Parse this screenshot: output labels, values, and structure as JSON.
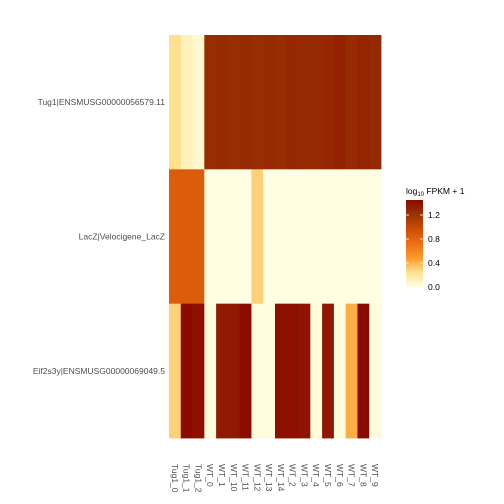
{
  "chart_data": {
    "type": "heatmap",
    "rows": [
      "Tug1|ENSMUSG00000056579.11",
      "LacZ|Velocigene_LacZ",
      "Eif2s3y|ENSMUSG00000069049.5"
    ],
    "columns": [
      "Tug1_0",
      "Tug1_1",
      "Tug1_2",
      "WT_0",
      "WT_1",
      "WT_10",
      "WT_11",
      "WT_12",
      "WT_13",
      "WT_14",
      "WT_2",
      "WT_3",
      "WT_4",
      "WT_5",
      "WT_6",
      "WT_7",
      "WT_8",
      "WT_9"
    ],
    "values": [
      [
        0.25,
        0.12,
        0.06,
        1.25,
        1.26,
        1.25,
        1.26,
        1.25,
        1.26,
        1.25,
        1.28,
        1.27,
        1.26,
        1.28,
        1.32,
        1.26,
        1.3,
        1.27
      ],
      [
        0.85,
        0.85,
        0.85,
        0.01,
        0.01,
        0.01,
        0.01,
        0.3,
        0.01,
        0.01,
        0.01,
        0.01,
        0.01,
        0.01,
        0.01,
        0.01,
        0.01,
        0.01
      ],
      [
        0.3,
        1.45,
        1.42,
        0.03,
        1.35,
        1.36,
        1.43,
        0.03,
        0.03,
        1.42,
        1.42,
        1.4,
        0.03,
        1.38,
        0.03,
        0.42,
        1.45,
        0.03
      ]
    ],
    "legend": {
      "title_prefix": "log",
      "title_sub": "10",
      "title_suffix": " FPKM + 1",
      "min": 0.0,
      "max": 1.45,
      "ticks": [
        0.0,
        0.4,
        0.8,
        1.2
      ],
      "tick_labels": [
        "0.0",
        "0.4",
        "0.8",
        "1.2"
      ]
    },
    "colors": [
      "#ffffe5",
      "#fee391",
      "#fe9929",
      "#ec7014",
      "#cc4c02",
      "#993404",
      "#8b0a00"
    ]
  }
}
